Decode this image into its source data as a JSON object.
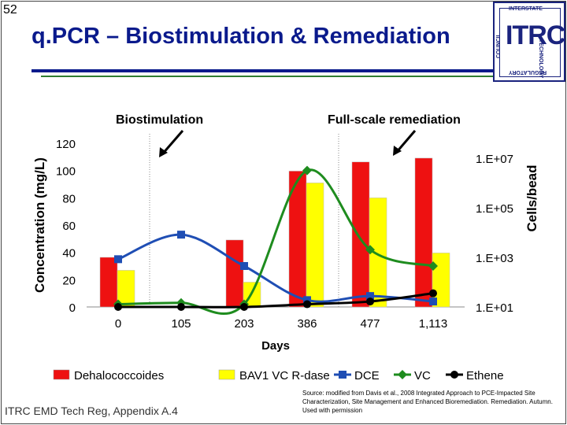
{
  "slide": {
    "number": "52",
    "title": "q.PCR – Biostimulation & Remediation",
    "footer": "ITRC EMD Tech Reg, Appendix A.4",
    "source": "Source: modified from Davis et al., 2008 Integrated Approach to PCE-Impacted Site Characterization, Site Management and Enhanced Bioremediation. Remediation. Autumn. Used with permission"
  },
  "logo": {
    "text": "ITRC",
    "top": "INTERSTATE",
    "right": "TECHNOLOGY",
    "bottom": "REGULATORY",
    "left": "COUNCIL",
    "color": "#1a237e"
  },
  "colors": {
    "title": "#0a1a8c",
    "dehalococcoides": "#ee1111",
    "bav1": "#ffff00",
    "dce": "#1f4eb4",
    "vc": "#1e8c1e",
    "ethene": "#000000"
  },
  "chart_data": {
    "type": "bar",
    "categories": [
      "0",
      "105",
      "203",
      "386",
      "477",
      "1,113"
    ],
    "xlabel": "Days",
    "ylabel": "Concentration (mg/L)",
    "y2label": "Cells/bead",
    "ylim": [
      0,
      120
    ],
    "yticks": [
      "0",
      "20",
      "40",
      "60",
      "80",
      "100",
      "120"
    ],
    "y2ticks": [
      "1.E+01",
      "1.E+03",
      "1.E+05",
      "1.E+07"
    ],
    "annotations": [
      "Biostimulation",
      "Full-scale remediation"
    ],
    "legend_position": "bottom",
    "series": [
      {
        "name": "Dehalococcoides",
        "kind": "bar",
        "axis": "right",
        "values": [
          1000,
          null,
          5000,
          3000000,
          7000000,
          10000000
        ]
      },
      {
        "name": "BAV1 VC R-dase",
        "kind": "bar",
        "axis": "right",
        "values": [
          300,
          null,
          100,
          1000000,
          250000,
          1500
        ]
      },
      {
        "name": "DCE",
        "kind": "line",
        "axis": "left",
        "values": [
          35,
          53,
          30,
          5,
          8,
          4
        ]
      },
      {
        "name": "VC",
        "kind": "line",
        "axis": "left",
        "values": [
          2,
          3,
          2,
          100,
          42,
          30
        ]
      },
      {
        "name": "Ethene",
        "kind": "line",
        "axis": "left",
        "values": [
          0,
          0,
          0,
          2,
          4,
          10
        ]
      }
    ]
  }
}
